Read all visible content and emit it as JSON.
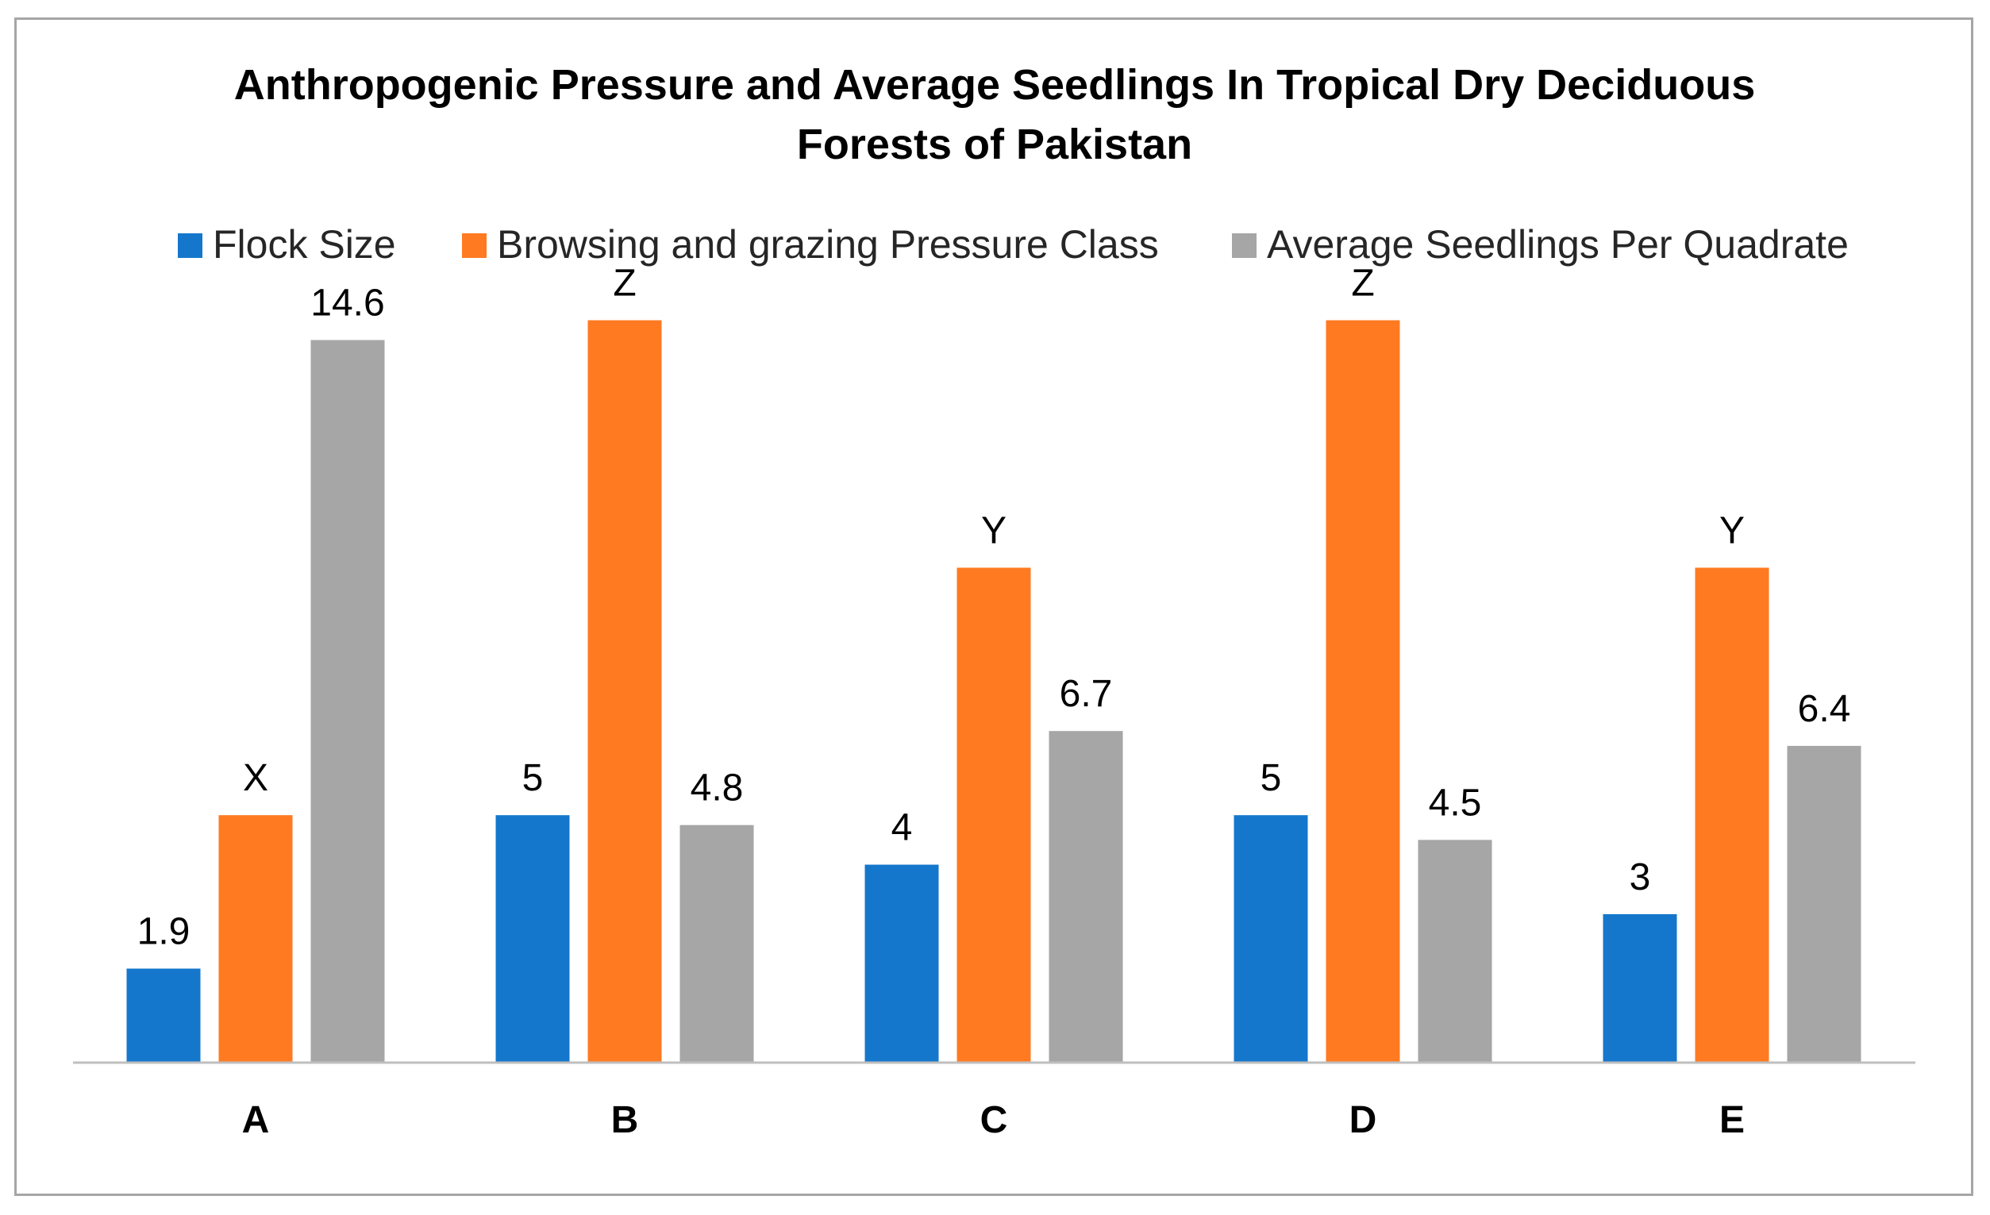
{
  "chart_data": {
    "type": "bar",
    "title_lines": [
      "Anthropogenic Pressure and Average Seedlings In Tropical Dry Deciduous",
      "Forests of Pakistan"
    ],
    "xlabel": "",
    "ylabel": "",
    "grid": false,
    "legend_position": "top",
    "ylim": [
      0,
      16.5
    ],
    "categories": [
      "A",
      "B",
      "C",
      "D",
      "E"
    ],
    "series": [
      {
        "name": "Flock Size",
        "color": "#1577cc",
        "values": [
          1.9,
          5,
          4,
          5,
          3
        ],
        "labels": [
          "1.9",
          "5",
          "4",
          "5",
          "3"
        ]
      },
      {
        "name": "Browsing and grazing Pressure Class",
        "color": "#ff7a21",
        "values": [
          5,
          15,
          10,
          15,
          10
        ],
        "labels": [
          "X",
          "Z",
          "Y",
          "Z",
          "Y"
        ]
      },
      {
        "name": "Average Seedlings Per Quadrate",
        "color": "#a6a6a6",
        "values": [
          14.6,
          4.8,
          6.7,
          4.5,
          6.4
        ],
        "labels": [
          "14.6",
          "4.8",
          "6.7",
          "4.5",
          "6.4"
        ]
      }
    ]
  }
}
